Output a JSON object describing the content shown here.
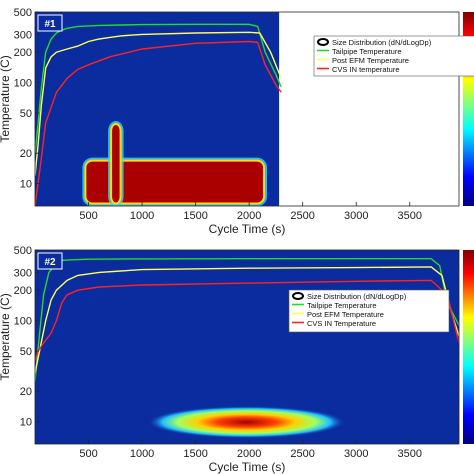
{
  "chart_data": [
    {
      "type": "heatmap",
      "panel_label": "#1",
      "xlabel": "Cycle Time (s)",
      "ylabel": "Temperature (C)",
      "x_ticks": [
        500,
        1000,
        1500,
        2000,
        2500,
        3000,
        3500
      ],
      "y_ticks": [
        10,
        20,
        50,
        100,
        200,
        300,
        500
      ],
      "xlim": [
        0,
        3960
      ],
      "ylim": [
        6,
        500
      ],
      "yscale": "log",
      "data_extent_x": 2280,
      "legend_position": "right-inside",
      "series": [
        {
          "name": "Size Distribution (dN/dLogDp)",
          "kind": "heatmap",
          "color": "#000000",
          "blobs": [
            {
              "x0": 480,
              "x1": 2130,
              "y0": 6.5,
              "y1": 16.5,
              "intensity": "high"
            },
            {
              "x0": 720,
              "x1": 790,
              "y0": 6.5,
              "y1": 38,
              "intensity": "high"
            }
          ]
        },
        {
          "name": "Tailpipe Temperature",
          "color": "#27d927",
          "x": [
            0,
            30,
            60,
            100,
            150,
            200,
            250,
            300,
            400,
            600,
            800,
            1000,
            1500,
            2000,
            2080,
            2150,
            2250,
            2300
          ],
          "y": [
            20,
            40,
            90,
            200,
            270,
            310,
            330,
            345,
            360,
            368,
            372,
            375,
            378,
            378,
            360,
            200,
            120,
            90
          ]
        },
        {
          "name": "Post EFM Temperature",
          "color": "#ffff55",
          "x": [
            0,
            30,
            60,
            100,
            150,
            200,
            300,
            400,
            500,
            600,
            700,
            800,
            1000,
            1500,
            2000,
            2100,
            2200,
            2300
          ],
          "y": [
            12,
            25,
            60,
            140,
            180,
            200,
            215,
            230,
            255,
            270,
            280,
            290,
            300,
            310,
            315,
            310,
            200,
            110
          ]
        },
        {
          "name": "CVS IN temperature",
          "color": "#ff2222",
          "x": [
            0,
            50,
            100,
            200,
            300,
            400,
            500,
            700,
            1000,
            1500,
            2000,
            2080,
            2150,
            2250,
            2300
          ],
          "y": [
            6,
            15,
            40,
            80,
            110,
            135,
            150,
            180,
            215,
            245,
            255,
            250,
            150,
            95,
            80
          ]
        }
      ]
    },
    {
      "type": "heatmap",
      "panel_label": "#2",
      "xlabel": "Cycle Time (s)",
      "ylabel": "Temperature (C)",
      "x_ticks": [
        500,
        1000,
        1500,
        2000,
        2500,
        3000,
        3500
      ],
      "y_ticks": [
        10,
        20,
        50,
        100,
        200,
        300,
        500
      ],
      "xlim": [
        0,
        3960
      ],
      "ylim": [
        6,
        500
      ],
      "yscale": "log",
      "data_extent_x": 3960,
      "legend_position": "top-right-inside",
      "series": [
        {
          "name": "Size Distribution (dN/dLogDp)",
          "kind": "heatmap",
          "color": "#000000",
          "blobs": [
            {
              "x0": 1050,
              "x1": 2900,
              "y0": 7.5,
              "y1": 13,
              "intensity": "medium"
            }
          ]
        },
        {
          "name": "Tailpipe Temperature",
          "color": "#27d927",
          "x": [
            0,
            40,
            80,
            130,
            200,
            260,
            350,
            500,
            1000,
            2000,
            3000,
            3700,
            3780,
            3850,
            3960
          ],
          "y": [
            25,
            70,
            180,
            300,
            370,
            395,
            400,
            405,
            408,
            410,
            410,
            410,
            350,
            150,
            90
          ]
        },
        {
          "name": "Post EFM Temperature",
          "color": "#ffff55",
          "x": [
            0,
            50,
            100,
            150,
            200,
            300,
            400,
            600,
            800,
            1000,
            2000,
            3000,
            3700,
            3800,
            3900,
            3960
          ],
          "y": [
            30,
            55,
            100,
            160,
            200,
            250,
            280,
            300,
            310,
            320,
            330,
            335,
            340,
            280,
            110,
            70
          ]
        },
        {
          "name": "CVS IN Temperature",
          "color": "#ff2222",
          "x": [
            0,
            30,
            80,
            150,
            200,
            250,
            300,
            400,
            600,
            1000,
            2000,
            3000,
            3700,
            3850,
            3960
          ],
          "y": [
            40,
            50,
            60,
            75,
            100,
            150,
            180,
            200,
            215,
            225,
            235,
            245,
            250,
            180,
            60
          ]
        }
      ]
    }
  ]
}
